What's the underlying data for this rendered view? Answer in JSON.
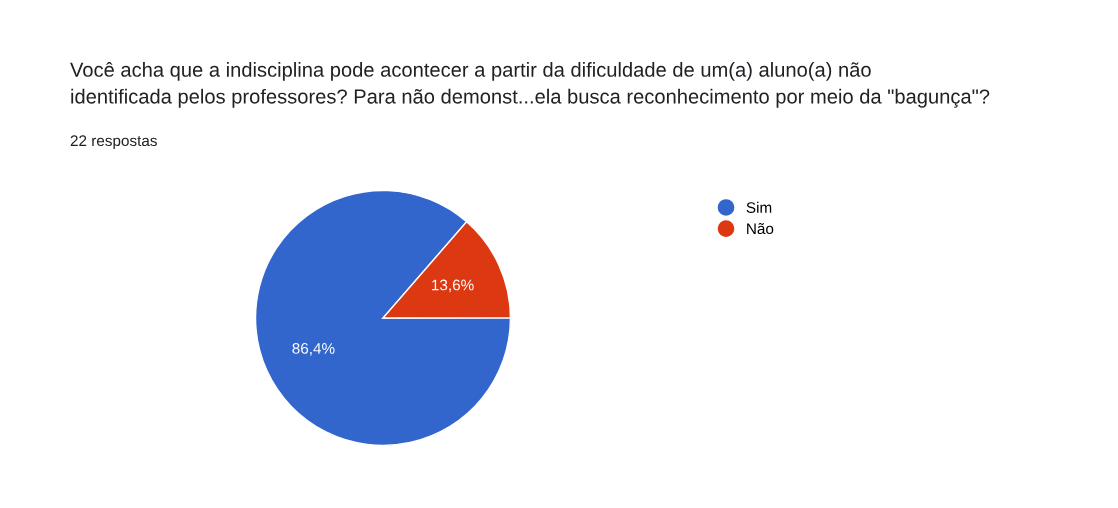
{
  "chart_data": {
    "type": "pie",
    "title": "Você acha que a indisciplina pode acontecer a partir da dificuldade de um(a) aluno(a) não\nidentificada pelos professores? Para não demonst...ela busca reconhecimento por meio da \"bagunça\"?",
    "subtitle": "22 respostas",
    "categories": [
      "Sim",
      "Não"
    ],
    "values": [
      86.4,
      13.6
    ],
    "colors": [
      "#3366cc",
      "#dc3912"
    ],
    "value_labels": [
      "86,4%",
      "13,6%"
    ],
    "legend": "right"
  }
}
